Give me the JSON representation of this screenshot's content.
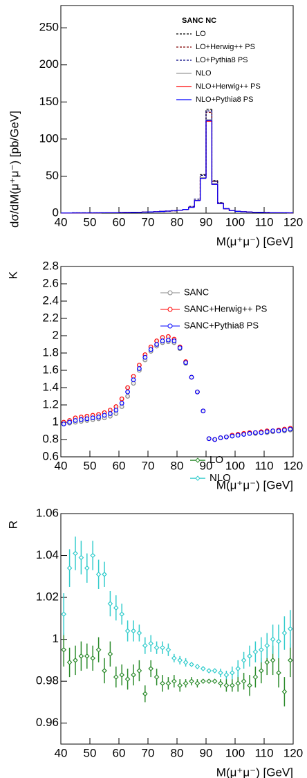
{
  "chart_data": [
    {
      "type": "histogram",
      "ylabel": "dσ/dM(μ⁺μ⁻) [pb/GeV]",
      "xlabel": "M(μ⁺μ⁻) [GeV]",
      "legend_title": "SANC NC",
      "bins": [
        40,
        42,
        44,
        46,
        48,
        50,
        52,
        54,
        56,
        58,
        60,
        62,
        64,
        66,
        68,
        70,
        72,
        74,
        76,
        78,
        80,
        82,
        84,
        86,
        88,
        90,
        92,
        94,
        96,
        98,
        100,
        102,
        104,
        106,
        108,
        110,
        112,
        114,
        116,
        118,
        120
      ],
      "series": [
        {
          "name": "LO",
          "color": "#000000",
          "line_style": "dashed",
          "values": [
            0.3,
            0.3,
            0.4,
            0.4,
            0.4,
            0.5,
            0.5,
            0.6,
            0.7,
            0.8,
            0.9,
            1.0,
            1.1,
            1.3,
            1.5,
            1.7,
            2.0,
            2.4,
            2.8,
            3.3,
            4.0,
            5.0,
            9,
            19,
            52,
            140,
            44,
            14,
            6,
            3.5,
            2.5,
            2,
            1.6,
            1.3,
            1.1,
            0.9,
            0.8,
            0.7,
            0.6,
            0.5
          ]
        },
        {
          "name": "LO+Herwig++ PS",
          "color": "#800000",
          "line_style": "dashed",
          "values": [
            0.3,
            0.3,
            0.4,
            0.4,
            0.4,
            0.5,
            0.5,
            0.6,
            0.7,
            0.8,
            0.9,
            1.0,
            1.1,
            1.3,
            1.5,
            1.7,
            2.0,
            2.4,
            2.8,
            3.3,
            4.0,
            5.0,
            9,
            19,
            51,
            136,
            43,
            14,
            6,
            3.5,
            2.5,
            2,
            1.6,
            1.3,
            1.1,
            0.9,
            0.8,
            0.7,
            0.6,
            0.5
          ]
        },
        {
          "name": "LO+Pythia8 PS",
          "color": "#000080",
          "line_style": "dashed",
          "values": [
            0.3,
            0.3,
            0.4,
            0.4,
            0.4,
            0.5,
            0.5,
            0.6,
            0.7,
            0.8,
            0.9,
            1.0,
            1.1,
            1.3,
            1.5,
            1.7,
            2.0,
            2.4,
            2.8,
            3.3,
            4.0,
            5.0,
            9,
            19,
            51,
            138,
            43,
            14,
            6,
            3.5,
            2.5,
            2,
            1.6,
            1.3,
            1.1,
            0.9,
            0.8,
            0.7,
            0.6,
            0.5
          ]
        },
        {
          "name": "NLO",
          "color": "#999999",
          "line_style": "solid",
          "values": [
            0.3,
            0.3,
            0.4,
            0.4,
            0.4,
            0.5,
            0.5,
            0.6,
            0.7,
            0.8,
            0.9,
            1.0,
            1.1,
            1.3,
            1.5,
            1.7,
            2.0,
            2.4,
            2.8,
            3.3,
            4.0,
            5.0,
            8,
            17,
            48,
            126,
            40,
            13,
            6,
            3.5,
            2.5,
            2,
            1.6,
            1.3,
            1.1,
            0.9,
            0.8,
            0.7,
            0.6,
            0.5
          ]
        },
        {
          "name": "NLO+Herwig++ PS",
          "color": "#ff0000",
          "line_style": "solid",
          "values": [
            0.3,
            0.3,
            0.4,
            0.4,
            0.4,
            0.5,
            0.5,
            0.6,
            0.7,
            0.8,
            0.9,
            1.0,
            1.1,
            1.3,
            1.5,
            1.7,
            2.0,
            2.4,
            2.8,
            3.3,
            4.0,
            5.0,
            8,
            17,
            47,
            124,
            39,
            13,
            6,
            3.5,
            2.5,
            2,
            1.6,
            1.3,
            1.1,
            0.9,
            0.8,
            0.7,
            0.6,
            0.5
          ]
        },
        {
          "name": "NLO+Pythia8 PS",
          "color": "#0000ff",
          "line_style": "solid",
          "values": [
            0.3,
            0.3,
            0.4,
            0.4,
            0.4,
            0.5,
            0.5,
            0.6,
            0.7,
            0.8,
            0.9,
            1.0,
            1.1,
            1.3,
            1.5,
            1.7,
            2.0,
            2.4,
            2.8,
            3.3,
            4.0,
            5.0,
            8,
            17,
            47,
            125,
            39,
            13,
            6,
            3.5,
            2.5,
            2,
            1.6,
            1.3,
            1.1,
            0.9,
            0.8,
            0.7,
            0.6,
            0.5
          ]
        }
      ],
      "xlim": [
        40,
        120
      ],
      "xticks": [
        40,
        50,
        60,
        70,
        80,
        90,
        100,
        110,
        120
      ],
      "ylim": [
        0,
        280
      ],
      "yticks": [
        0,
        50,
        100,
        150,
        200,
        250
      ]
    },
    {
      "type": "scatter",
      "ylabel": "K",
      "xlabel": "M(μ⁺μ⁻) [GeV]",
      "x": [
        41,
        43,
        45,
        47,
        49,
        51,
        53,
        55,
        57,
        59,
        61,
        63,
        65,
        67,
        69,
        71,
        73,
        75,
        77,
        79,
        81,
        83,
        85,
        87,
        89,
        91,
        93,
        95,
        97,
        99,
        101,
        103,
        105,
        107,
        109,
        111,
        113,
        115,
        117,
        119
      ],
      "series": [
        {
          "name": "SANC",
          "color": "#888888",
          "values": [
            0.98,
            0.99,
            1.0,
            1.01,
            1.02,
            1.03,
            1.04,
            1.05,
            1.07,
            1.1,
            1.18,
            1.3,
            1.45,
            1.6,
            1.72,
            1.82,
            1.88,
            1.92,
            1.93,
            1.92,
            1.85,
            1.68,
            1.52,
            1.35,
            1.13,
            0.81,
            0.8,
            0.82,
            0.83,
            0.84,
            0.85,
            0.86,
            0.87,
            0.87,
            0.88,
            0.88,
            0.89,
            0.9,
            0.9,
            0.91
          ]
        },
        {
          "name": "SANC+Herwig++ PS",
          "color": "#ff0000",
          "values": [
            1.0,
            1.02,
            1.05,
            1.06,
            1.07,
            1.08,
            1.09,
            1.11,
            1.14,
            1.18,
            1.27,
            1.4,
            1.53,
            1.66,
            1.78,
            1.87,
            1.94,
            1.98,
            1.99,
            1.96,
            1.87,
            1.7,
            1.52,
            1.35,
            1.13,
            0.81,
            0.8,
            0.82,
            0.83,
            0.85,
            0.86,
            0.87,
            0.88,
            0.88,
            0.89,
            0.9,
            0.9,
            0.91,
            0.92,
            0.93
          ]
        },
        {
          "name": "SANC+Pythia8 PS",
          "color": "#0000ff",
          "values": [
            0.98,
            1.0,
            1.02,
            1.03,
            1.04,
            1.05,
            1.06,
            1.08,
            1.1,
            1.14,
            1.22,
            1.35,
            1.49,
            1.62,
            1.75,
            1.84,
            1.9,
            1.94,
            1.95,
            1.94,
            1.86,
            1.69,
            1.52,
            1.35,
            1.13,
            0.81,
            0.8,
            0.82,
            0.83,
            0.84,
            0.85,
            0.86,
            0.87,
            0.88,
            0.88,
            0.89,
            0.9,
            0.9,
            0.91,
            0.92
          ]
        }
      ],
      "xlim": [
        40,
        120
      ],
      "xticks": [
        40,
        50,
        60,
        70,
        80,
        90,
        100,
        110,
        120
      ],
      "ylim": [
        0.6,
        2.8
      ],
      "yticks": [
        0.6,
        0.8,
        1,
        {
          "value": 1.2,
          "label": "1.2"
        },
        1.4,
        1.6,
        1.8,
        2,
        2.2,
        2.4,
        2.6,
        2.8
      ]
    },
    {
      "type": "errorbar",
      "ylabel": "R",
      "xlabel": "M(μ⁺μ⁻) [GeV]",
      "x": [
        41,
        43,
        45,
        47,
        49,
        51,
        53,
        55,
        57,
        59,
        61,
        63,
        65,
        67,
        69,
        71,
        73,
        75,
        77,
        79,
        81,
        83,
        85,
        87,
        89,
        91,
        93,
        95,
        97,
        99,
        101,
        103,
        105,
        107,
        109,
        111,
        113,
        115,
        117,
        119
      ],
      "series": [
        {
          "name": "LO",
          "color": "#2a8a2a",
          "values": [
            0.995,
            0.989,
            0.99,
            0.992,
            0.992,
            0.991,
            0.995,
            0.985,
            0.993,
            0.982,
            0.983,
            0.981,
            0.983,
            0.985,
            0.974,
            0.986,
            0.982,
            0.979,
            0.979,
            0.98,
            0.978,
            0.979,
            0.98,
            0.979,
            0.98,
            0.98,
            0.98,
            0.979,
            0.978,
            0.978,
            0.979,
            0.98,
            0.978,
            0.982,
            0.985,
            0.989,
            0.99,
            0.984,
            0.975,
            0.99
          ],
          "errors": [
            0.008,
            0.007,
            0.007,
            0.007,
            0.006,
            0.006,
            0.006,
            0.006,
            0.006,
            0.005,
            0.005,
            0.005,
            0.005,
            0.005,
            0.004,
            0.004,
            0.004,
            0.004,
            0.003,
            0.003,
            0.003,
            0.002,
            0.002,
            0.002,
            0.001,
            0.001,
            0.001,
            0.002,
            0.003,
            0.003,
            0.004,
            0.004,
            0.005,
            0.005,
            0.006,
            0.006,
            0.007,
            0.007,
            0.007,
            0.008
          ]
        },
        {
          "name": "NLO",
          "color": "#33cccc",
          "values": [
            1.012,
            1.034,
            1.041,
            1.039,
            1.034,
            1.04,
            1.031,
            1.031,
            1.017,
            1.015,
            1.012,
            1.004,
            1.004,
            1.003,
            0.997,
            0.998,
            0.996,
            0.996,
            0.995,
            0.991,
            0.99,
            0.989,
            0.988,
            0.987,
            0.986,
            0.985,
            0.985,
            0.984,
            0.983,
            0.984,
            0.986,
            0.99,
            0.992,
            0.994,
            0.995,
            0.997,
            1.0,
            0.999,
            1.003,
            1.005
          ],
          "errors": [
            0.01,
            0.009,
            0.008,
            0.008,
            0.007,
            0.007,
            0.007,
            0.006,
            0.006,
            0.006,
            0.005,
            0.005,
            0.005,
            0.004,
            0.004,
            0.004,
            0.003,
            0.003,
            0.003,
            0.002,
            0.002,
            0.002,
            0.001,
            0.001,
            0.001,
            0.001,
            0.001,
            0.002,
            0.002,
            0.003,
            0.004,
            0.004,
            0.005,
            0.005,
            0.006,
            0.006,
            0.007,
            0.008,
            0.008,
            0.009
          ]
        }
      ],
      "xlim": [
        40,
        120
      ],
      "xticks": [
        40,
        50,
        60,
        70,
        80,
        90,
        100,
        110,
        120
      ],
      "ylim": [
        0.95,
        1.06
      ],
      "yticks": [
        0.96,
        0.98,
        1,
        1.02,
        1.04,
        1.06
      ]
    }
  ]
}
